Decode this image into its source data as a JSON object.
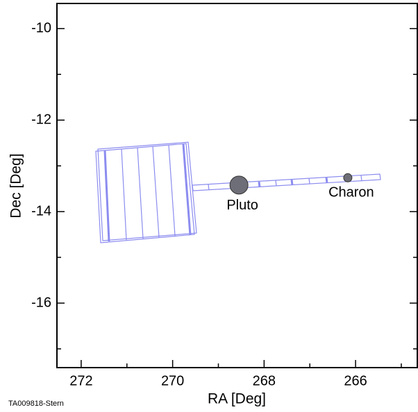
{
  "chart_data": {
    "type": "scatter",
    "x_label": "RA [Deg]",
    "y_label": "Dec [Deg]",
    "footer": "TA009818-Stern",
    "xlim": [
      272.53,
      264.65
    ],
    "ylim": [
      -17.41,
      -9.45
    ],
    "xticks": [
      272,
      270,
      268,
      266
    ],
    "yticks": [
      -10,
      -12,
      -14,
      -16
    ],
    "xminorticks": [
      271,
      269,
      267,
      265
    ],
    "yminorticks": [
      -11,
      -13,
      -15,
      -17
    ],
    "series": [
      {
        "name": "Pluto",
        "color": "#6e6e78",
        "x": [
          268.55
        ],
        "values": [
          -13.42
        ]
      },
      {
        "name": "Charon",
        "color": "#6e6e78",
        "x": [
          266.17
        ],
        "values": [
          -13.26
        ]
      }
    ]
  }
}
